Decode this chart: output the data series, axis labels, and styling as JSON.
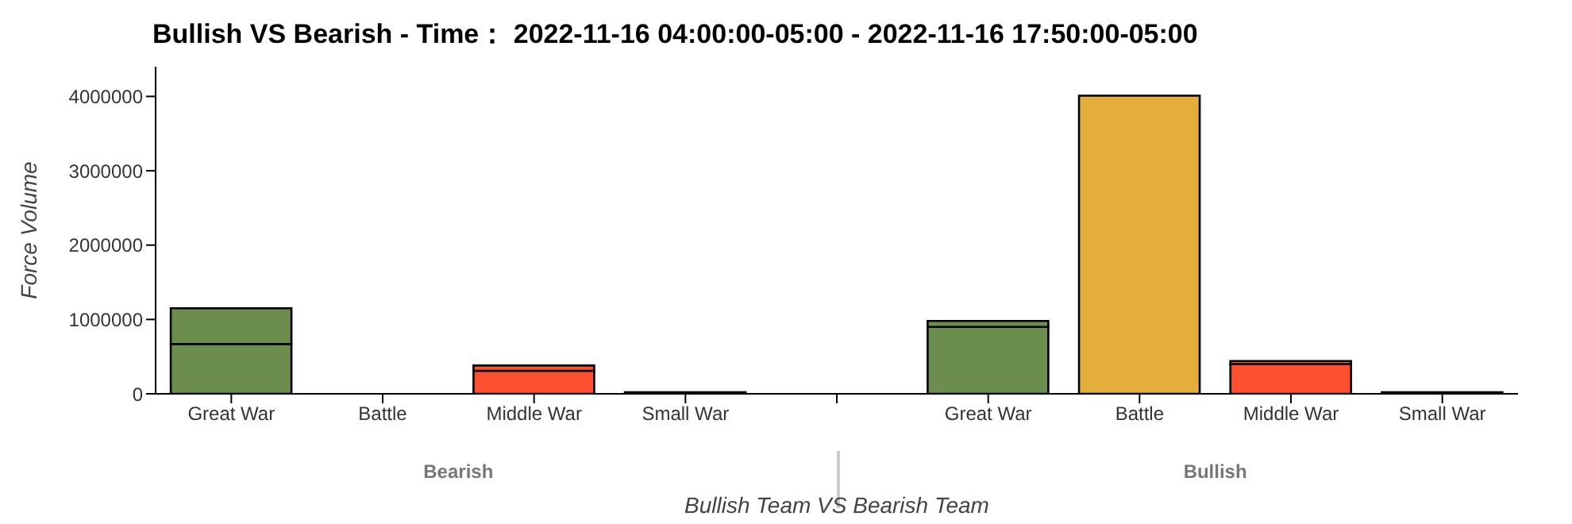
{
  "chart_data": {
    "type": "bar",
    "stacked": true,
    "title": "Bullish VS Bearish - Time：  2022-11-16 04:00:00-05:00 - 2022-11-16 17:50:00-05:00",
    "xlabel": "Bullish Team VS Bearish Team",
    "ylabel": "Force Volume",
    "annotations": [
      "Bearish",
      "Bullish"
    ],
    "categories": [
      "Great War",
      "Battle",
      "Middle War",
      "Small War",
      null,
      "Great War",
      "Battle",
      "Middle War",
      "Small War"
    ],
    "series": [
      {
        "colors": [
          "#6b8e4e",
          "#e3ae3b",
          "#fc5030",
          "#808080",
          "#ffffff",
          "#6b8e4e",
          "#e3ae3b",
          "#fc5030",
          "#808080"
        ],
        "values": [
          670000,
          0,
          310000,
          20000,
          null,
          900000,
          4010000,
          400000,
          20000
        ]
      },
      {
        "colors": [
          "#6b8e4e",
          "#e3ae3b",
          "#fc5030",
          "#808080",
          "#ffffff",
          "#6b8e4e",
          "#e3ae3b",
          "#fc5030",
          "#808080"
        ],
        "values": [
          480000,
          0,
          70000,
          0,
          null,
          80000,
          0,
          40000,
          0
        ]
      }
    ],
    "ylim": [
      0,
      4400000
    ],
    "yticks": [
      0,
      1000000,
      2000000,
      3000000,
      4000000
    ],
    "grid": false
  }
}
